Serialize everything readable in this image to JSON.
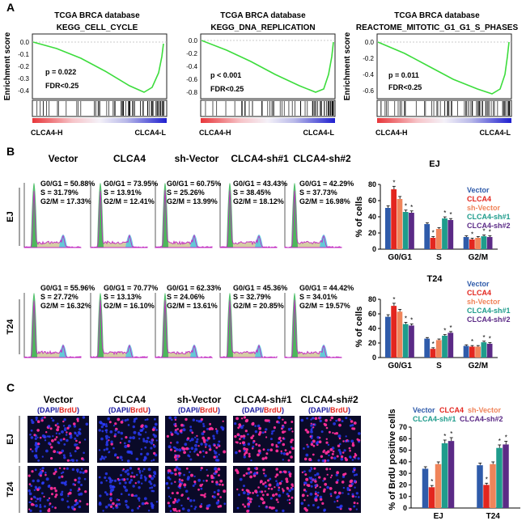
{
  "panel_labels": {
    "a": "A",
    "b": "B",
    "c": "C"
  },
  "gsea": [
    {
      "db": "TCGA BRCA database",
      "set": "KEGG_CELL_CYCLE",
      "p": "p = 0.022",
      "fdr": "FDR<0.25",
      "ticks": [
        "0.0",
        "-0.1",
        "-0.2",
        "-0.3",
        "-0.4"
      ],
      "left": "CLCA4-H",
      "right": "CLCA4-L"
    },
    {
      "db": "TCGA BRCA database",
      "set": "KEGG_DNA_REPLICATION",
      "p": "p < 0.001",
      "fdr": "FDR<0.25",
      "ticks": [
        "0.0",
        "-0.2",
        "-0.4",
        "-0.6",
        "-0.8"
      ],
      "left": "CLCA4-H",
      "right": "CLCA4-L"
    },
    {
      "db": "TCGA BRCA database",
      "set": "REACTOME_MITOTIC_G1_G1_S_PHASES",
      "p": "p = 0.011",
      "fdr": "FDR<0.25",
      "ticks": [
        "0.0",
        "-0.2",
        "-0.4",
        "-0.6"
      ],
      "left": "CLCA4-H",
      "right": "CLCA4-L"
    }
  ],
  "gsea_ylabel": "Enrichment score",
  "groups": [
    "Vector",
    "CLCA4",
    "sh-Vector",
    "CLCA4-sh#1",
    "CLCA4-sh#2"
  ],
  "row_labels": {
    "ej": "EJ",
    "t24": "T24"
  },
  "flow_ej": [
    {
      "g0": "G0/G1 = 50.88%",
      "s": "S = 31.79%",
      "g2": "G2/M = 17.33%"
    },
    {
      "g0": "G0/G1 = 73.95%",
      "s": "S = 13.91%",
      "g2": "G2/M = 12.41%"
    },
    {
      "g0": "G0/G1 = 60.75%",
      "s": "S = 25.26%",
      "g2": "G2/M = 13.99%"
    },
    {
      "g0": "G0/G1 = 43.43%",
      "s": "S = 38.45%",
      "g2": "G2/M = 18.12%"
    },
    {
      "g0": "G0/G1 = 42.29%",
      "s": "S = 37.73%",
      "g2": "G2/M = 16.98%"
    }
  ],
  "flow_t24": [
    {
      "g0": "G0/G1 = 55.96%",
      "s": "S = 27.72%",
      "g2": "G2/M = 16.32%"
    },
    {
      "g0": "G0/G1 = 70.77%",
      "s": "S = 13.13%",
      "g2": "G2/M = 16.10%"
    },
    {
      "g0": "G0/G1 = 62.33%",
      "s": "S = 24.06%",
      "g2": "G2/M = 13.61%"
    },
    {
      "g0": "G0/G1 = 45.36%",
      "s": "S = 32.79%",
      "g2": "G2/M = 20.85%"
    },
    {
      "g0": "G0/G1 = 44.42%",
      "s": "S = 34.01%",
      "g2": "G2/M = 19.57%"
    }
  ],
  "brdu_label": {
    "open": "(",
    "dapi": "DAPI",
    "sep": "/",
    "brdu": "BrdU",
    "close": ")"
  },
  "legend": {
    "names": [
      "Vector",
      "CLCA4",
      "sh-Vector",
      "CLCA4-sh#1",
      "CLCA4-sh#2"
    ],
    "colors": [
      "#2F5BAA",
      "#E3261F",
      "#F0845A",
      "#1F9C8C",
      "#5B2A86"
    ]
  },
  "chart_data": [
    {
      "type": "bar",
      "title": "EJ",
      "categories": [
        "G0/G1",
        "S",
        "G2/M"
      ],
      "ylabel": "% of cells",
      "ylim": [
        0,
        80
      ],
      "yticks": [
        "0",
        "20",
        "40",
        "60",
        "80"
      ],
      "series": [
        {
          "name": "Vector",
          "values": [
            51,
            31,
            15
          ]
        },
        {
          "name": "CLCA4",
          "values": [
            74,
            14,
            12
          ]
        },
        {
          "name": "sh-Vector",
          "values": [
            62,
            25,
            14
          ]
        },
        {
          "name": "CLCA4-sh#1",
          "values": [
            46,
            38,
            16
          ]
        },
        {
          "name": "CLCA4-sh#2",
          "values": [
            45,
            36,
            15
          ]
        }
      ],
      "significance": "*"
    },
    {
      "type": "bar",
      "title": "T24",
      "categories": [
        "G0/G1",
        "S",
        "G2/M"
      ],
      "ylabel": "% of cells",
      "ylim": [
        0,
        80
      ],
      "yticks": [
        "0",
        "20",
        "40",
        "60",
        "80"
      ],
      "series": [
        {
          "name": "Vector",
          "values": [
            56,
            26,
            16
          ]
        },
        {
          "name": "CLCA4",
          "values": [
            71,
            12,
            15
          ]
        },
        {
          "name": "sh-Vector",
          "values": [
            63,
            24,
            15
          ]
        },
        {
          "name": "CLCA4-sh#1",
          "values": [
            46,
            30,
            21
          ]
        },
        {
          "name": "CLCA4-sh#2",
          "values": [
            44,
            34,
            19
          ]
        }
      ],
      "significance": "*"
    },
    {
      "type": "bar",
      "title": "",
      "categories": [
        "EJ",
        "T24"
      ],
      "ylabel": "% of BrdU positive cells",
      "ylim": [
        0,
        70
      ],
      "yticks": [
        "0",
        "10",
        "20",
        "30",
        "40",
        "50",
        "60",
        "70"
      ],
      "series": [
        {
          "name": "Vector",
          "values": [
            34,
            37
          ]
        },
        {
          "name": "CLCA4",
          "values": [
            18,
            20
          ]
        },
        {
          "name": "sh-Vector",
          "values": [
            38,
            38
          ]
        },
        {
          "name": "CLCA4-sh#1",
          "values": [
            56,
            52
          ]
        },
        {
          "name": "CLCA4-sh#2",
          "values": [
            58,
            55
          ]
        }
      ],
      "significance": "*"
    }
  ]
}
